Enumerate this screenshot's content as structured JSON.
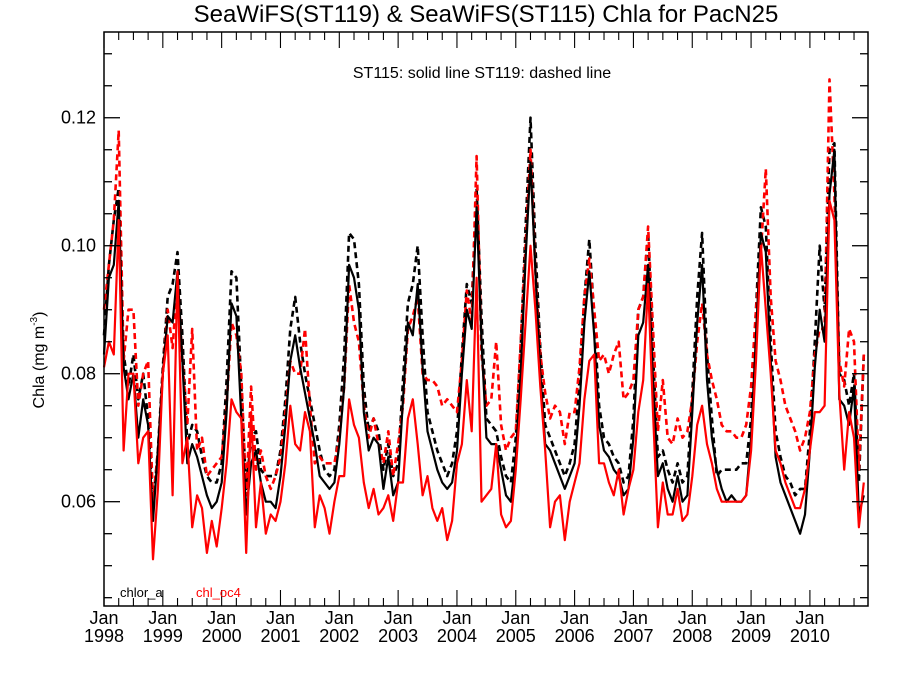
{
  "chart_data": {
    "type": "line",
    "title": "SeaWiFS(ST119) & SeaWiFS(ST115)  Chla for PacN25",
    "annotation": "ST115: solid line   ST119: dashed line",
    "xlabel": "",
    "ylabel": "Chla (mg m",
    "ylabel_superscript": "-3",
    "ylabel_suffix": ")",
    "ylim": [
      0.0437,
      0.1334
    ],
    "yticks": [
      0.06,
      0.08,
      0.1,
      0.12
    ],
    "ytick_labels": [
      "0.06",
      "0.08",
      "0.10",
      "0.12"
    ],
    "y_minor_step": 0.005,
    "x_start": "1998-01",
    "x_end": "2010-12",
    "x_frequency": "monthly",
    "xtick_labels": [
      {
        "top": "Jan",
        "bottom": "1998"
      },
      {
        "top": "Jan",
        "bottom": "1999"
      },
      {
        "top": "Jan",
        "bottom": "2000"
      },
      {
        "top": "Jan",
        "bottom": "2001"
      },
      {
        "top": "Jan",
        "bottom": "2002"
      },
      {
        "top": "Jan",
        "bottom": "2003"
      },
      {
        "top": "Jan",
        "bottom": "2004"
      },
      {
        "top": "Jan",
        "bottom": "2005"
      },
      {
        "top": "Jan",
        "bottom": "2006"
      },
      {
        "top": "Jan",
        "bottom": "2007"
      },
      {
        "top": "Jan",
        "bottom": "2008"
      },
      {
        "top": "Jan",
        "bottom": "2009"
      },
      {
        "top": "Jan",
        "bottom": "2010"
      }
    ],
    "grid": false,
    "legend": {
      "placement": "bottom-left",
      "entries": [
        {
          "label": "chlor_a",
          "color": "#000000"
        },
        {
          "label": "chl_oc4",
          "color": "#ff0000"
        }
      ]
    },
    "series": [
      {
        "name": "chlor_a ST115",
        "color": "#000000",
        "style": "solid",
        "values": [
          0.083,
          0.095,
          0.097,
          0.107,
          0.081,
          0.076,
          0.08,
          0.07,
          0.076,
          0.072,
          0.057,
          0.068,
          0.08,
          0.089,
          0.088,
          0.096,
          0.082,
          0.066,
          0.069,
          0.067,
          0.064,
          0.061,
          0.059,
          0.06,
          0.063,
          0.074,
          0.091,
          0.089,
          0.073,
          0.058,
          0.066,
          0.068,
          0.063,
          0.06,
          0.06,
          0.059,
          0.064,
          0.072,
          0.082,
          0.086,
          0.081,
          0.077,
          0.073,
          0.069,
          0.064,
          0.063,
          0.062,
          0.063,
          0.069,
          0.078,
          0.097,
          0.095,
          0.09,
          0.074,
          0.068,
          0.07,
          0.069,
          0.062,
          0.067,
          0.061,
          0.063,
          0.076,
          0.088,
          0.086,
          0.094,
          0.081,
          0.071,
          0.068,
          0.065,
          0.063,
          0.062,
          0.063,
          0.068,
          0.08,
          0.09,
          0.087,
          0.106,
          0.085,
          0.07,
          0.069,
          0.069,
          0.065,
          0.061,
          0.06,
          0.067,
          0.08,
          0.098,
          0.113,
          0.096,
          0.08,
          0.069,
          0.068,
          0.066,
          0.064,
          0.062,
          0.064,
          0.066,
          0.075,
          0.088,
          0.096,
          0.086,
          0.072,
          0.068,
          0.067,
          0.065,
          0.064,
          0.061,
          0.062,
          0.07,
          0.086,
          0.088,
          0.097,
          0.079,
          0.064,
          0.066,
          0.062,
          0.06,
          0.064,
          0.06,
          0.061,
          0.074,
          0.088,
          0.097,
          0.079,
          0.07,
          0.065,
          0.062,
          0.06,
          0.061,
          0.06,
          0.06,
          0.061,
          0.07,
          0.086,
          0.102,
          0.099,
          0.082,
          0.067,
          0.063,
          0.061,
          0.059,
          0.057,
          0.055,
          0.058,
          0.068,
          0.081,
          0.09,
          0.085,
          0.108,
          0.115,
          0.076,
          0.075,
          0.072,
          0.078,
          0.058,
          0.061
        ]
      },
      {
        "name": "chlor_a ST119",
        "color": "#000000",
        "style": "dashed",
        "values": [
          0.086,
          0.097,
          0.104,
          0.109,
          0.083,
          0.078,
          0.083,
          0.076,
          0.08,
          0.073,
          0.059,
          0.068,
          0.081,
          0.092,
          0.094,
          0.099,
          0.086,
          0.069,
          0.072,
          0.071,
          0.067,
          0.064,
          0.063,
          0.063,
          0.066,
          0.079,
          0.096,
          0.095,
          0.078,
          0.062,
          0.07,
          0.071,
          0.065,
          0.064,
          0.064,
          0.064,
          0.068,
          0.076,
          0.087,
          0.092,
          0.085,
          0.08,
          0.076,
          0.072,
          0.068,
          0.065,
          0.064,
          0.065,
          0.072,
          0.083,
          0.102,
          0.101,
          0.094,
          0.078,
          0.071,
          0.073,
          0.071,
          0.065,
          0.069,
          0.064,
          0.066,
          0.079,
          0.091,
          0.094,
          0.1,
          0.086,
          0.074,
          0.071,
          0.068,
          0.066,
          0.064,
          0.066,
          0.071,
          0.083,
          0.094,
          0.091,
          0.109,
          0.089,
          0.073,
          0.072,
          0.071,
          0.067,
          0.064,
          0.063,
          0.07,
          0.084,
          0.103,
          0.12,
          0.1,
          0.084,
          0.072,
          0.07,
          0.068,
          0.066,
          0.064,
          0.066,
          0.069,
          0.079,
          0.092,
          0.101,
          0.089,
          0.075,
          0.07,
          0.069,
          0.067,
          0.066,
          0.063,
          0.064,
          0.073,
          0.09,
          0.092,
          0.102,
          0.083,
          0.067,
          0.068,
          0.065,
          0.063,
          0.066,
          0.063,
          0.064,
          0.077,
          0.092,
          0.102,
          0.083,
          0.073,
          0.064,
          0.065,
          0.065,
          0.065,
          0.065,
          0.066,
          0.066,
          0.073,
          0.09,
          0.106,
          0.103,
          0.085,
          0.071,
          0.067,
          0.064,
          0.063,
          0.061,
          0.062,
          0.062,
          0.071,
          0.085,
          0.1,
          0.09,
          0.115,
          0.116,
          0.08,
          0.079,
          0.075,
          0.08,
          0.063,
          0.083
        ]
      },
      {
        "name": "chl_oc4 ST115",
        "color": "#ff0000",
        "style": "solid",
        "values": [
          0.081,
          0.085,
          0.083,
          0.104,
          0.068,
          0.08,
          0.08,
          0.066,
          0.07,
          0.071,
          0.051,
          0.062,
          0.08,
          0.086,
          0.061,
          0.096,
          0.066,
          0.07,
          0.056,
          0.061,
          0.059,
          0.052,
          0.057,
          0.053,
          0.059,
          0.066,
          0.076,
          0.074,
          0.073,
          0.052,
          0.074,
          0.056,
          0.063,
          0.055,
          0.058,
          0.057,
          0.06,
          0.066,
          0.075,
          0.069,
          0.068,
          0.074,
          0.071,
          0.056,
          0.061,
          0.059,
          0.055,
          0.06,
          0.064,
          0.064,
          0.076,
          0.072,
          0.07,
          0.063,
          0.059,
          0.062,
          0.058,
          0.059,
          0.061,
          0.057,
          0.063,
          0.063,
          0.073,
          0.076,
          0.069,
          0.061,
          0.064,
          0.059,
          0.057,
          0.059,
          0.054,
          0.057,
          0.066,
          0.069,
          0.079,
          0.071,
          0.095,
          0.06,
          0.061,
          0.062,
          0.069,
          0.058,
          0.056,
          0.057,
          0.065,
          0.076,
          0.088,
          0.1,
          0.09,
          0.078,
          0.068,
          0.056,
          0.06,
          0.061,
          0.054,
          0.06,
          0.063,
          0.066,
          0.076,
          0.082,
          0.083,
          0.066,
          0.066,
          0.063,
          0.061,
          0.065,
          0.058,
          0.062,
          0.065,
          0.074,
          0.079,
          0.094,
          0.074,
          0.056,
          0.063,
          0.058,
          0.058,
          0.062,
          0.057,
          0.058,
          0.064,
          0.072,
          0.075,
          0.069,
          0.066,
          0.062,
          0.06,
          0.06,
          0.06,
          0.06,
          0.06,
          0.061,
          0.068,
          0.082,
          0.1,
          0.09,
          0.08,
          0.068,
          0.066,
          0.063,
          0.061,
          0.059,
          0.059,
          0.062,
          0.068,
          0.074,
          0.074,
          0.075,
          0.107,
          0.104,
          0.077,
          0.065,
          0.074,
          0.07,
          0.056,
          0.063
        ]
      },
      {
        "name": "chl_oc4 ST119",
        "color": "#ff0000",
        "style": "dashed",
        "values": [
          0.09,
          0.097,
          0.104,
          0.118,
          0.082,
          0.09,
          0.09,
          0.075,
          0.08,
          0.082,
          0.06,
          0.068,
          0.08,
          0.09,
          0.084,
          0.095,
          0.082,
          0.072,
          0.087,
          0.068,
          0.07,
          0.064,
          0.065,
          0.066,
          0.067,
          0.075,
          0.088,
          0.086,
          0.08,
          0.061,
          0.078,
          0.065,
          0.068,
          0.064,
          0.062,
          0.064,
          0.067,
          0.074,
          0.082,
          0.08,
          0.08,
          0.087,
          0.075,
          0.066,
          0.067,
          0.066,
          0.066,
          0.066,
          0.07,
          0.078,
          0.094,
          0.088,
          0.085,
          0.075,
          0.07,
          0.073,
          0.069,
          0.066,
          0.071,
          0.064,
          0.069,
          0.075,
          0.087,
          0.089,
          0.092,
          0.08,
          0.079,
          0.079,
          0.078,
          0.075,
          0.076,
          0.075,
          0.074,
          0.082,
          0.093,
          0.088,
          0.114,
          0.083,
          0.075,
          0.076,
          0.085,
          0.072,
          0.068,
          0.07,
          0.071,
          0.085,
          0.1,
          0.115,
          0.096,
          0.083,
          0.077,
          0.073,
          0.075,
          0.074,
          0.069,
          0.074,
          0.074,
          0.081,
          0.092,
          0.098,
          0.09,
          0.082,
          0.083,
          0.08,
          0.083,
          0.085,
          0.076,
          0.077,
          0.079,
          0.09,
          0.092,
          0.103,
          0.087,
          0.071,
          0.079,
          0.07,
          0.069,
          0.073,
          0.07,
          0.071,
          0.076,
          0.085,
          0.091,
          0.083,
          0.079,
          0.076,
          0.072,
          0.071,
          0.071,
          0.07,
          0.07,
          0.072,
          0.078,
          0.09,
          0.099,
          0.112,
          0.092,
          0.082,
          0.079,
          0.075,
          0.073,
          0.071,
          0.068,
          0.07,
          0.074,
          0.083,
          0.087,
          0.087,
          0.126,
          0.108,
          0.082,
          0.078,
          0.087,
          0.085,
          0.065,
          0.083
        ]
      }
    ]
  }
}
